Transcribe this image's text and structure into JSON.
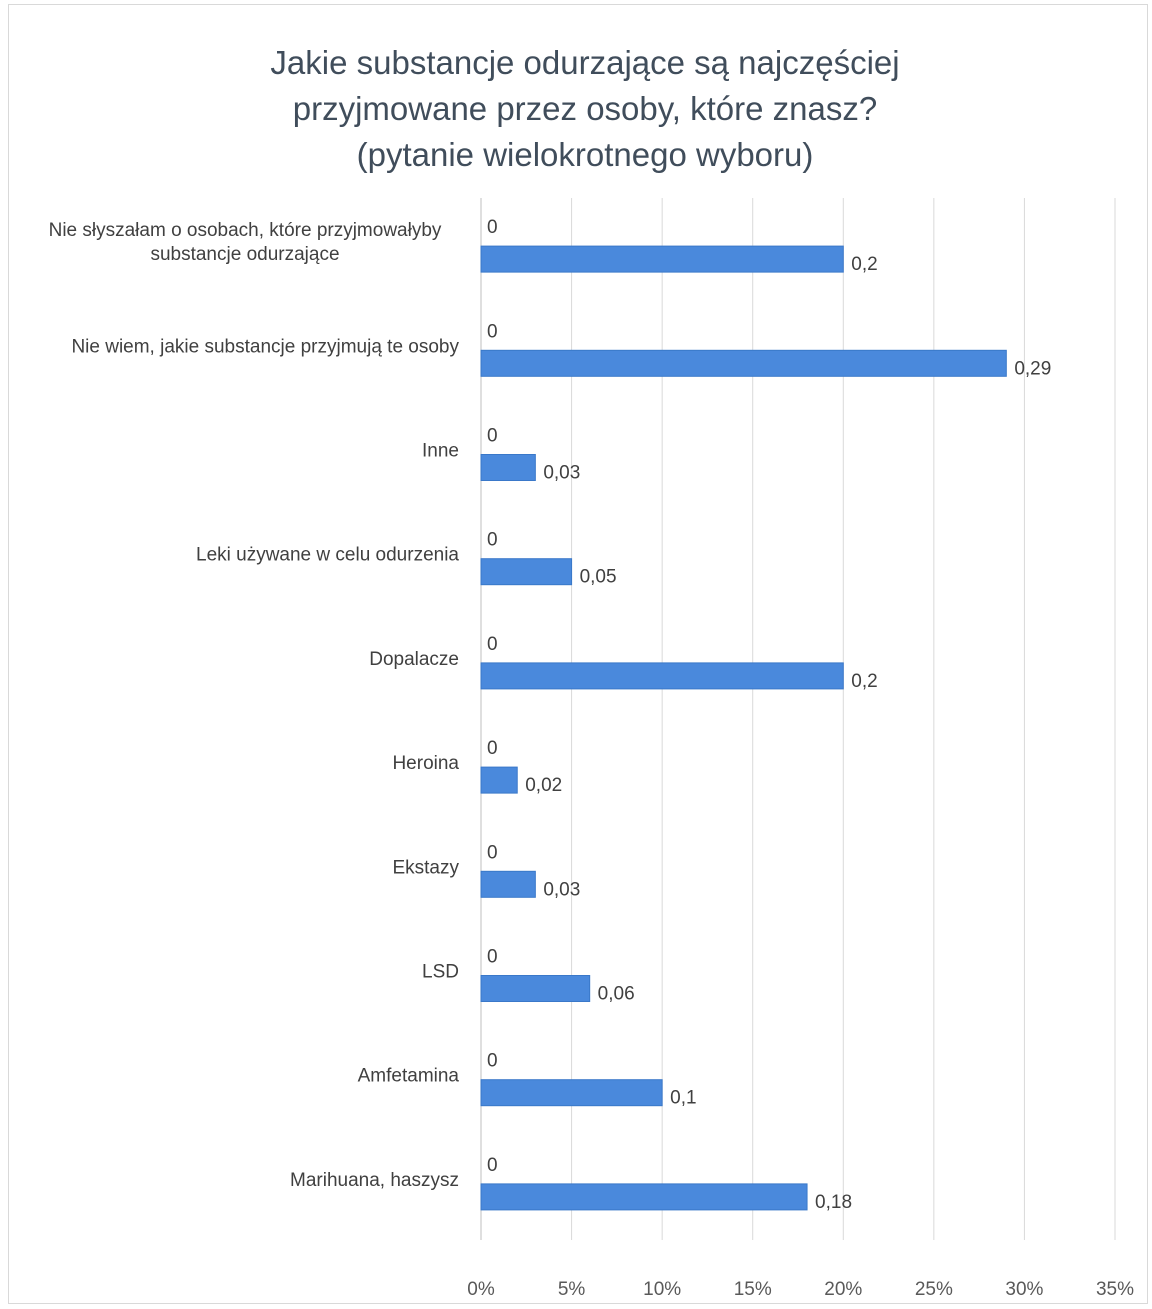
{
  "chart_data": {
    "type": "bar",
    "orientation": "horizontal",
    "title_lines": [
      "Jakie substancje odurzające są najczęściej",
      "przyjmowane przez osoby, które znasz?",
      "(pytanie wielokrotnego wyboru)"
    ],
    "categories": [
      [
        "Nie słyszałam o osobach, które przyjmowałyby",
        "substancje odurzające"
      ],
      [
        "Nie wiem, jakie substancje przyjmują te osoby"
      ],
      [
        "Inne"
      ],
      [
        "Leki używane w celu odurzenia"
      ],
      [
        "Dopalacze"
      ],
      [
        "Heroina"
      ],
      [
        "Ekstazy"
      ],
      [
        "LSD"
      ],
      [
        "Amfetamina"
      ],
      [
        "Marihuana, haszysz"
      ]
    ],
    "series": [
      {
        "values": [
          0,
          0,
          0,
          0,
          0,
          0,
          0,
          0,
          0,
          0
        ],
        "data_labels": [
          "0",
          "0",
          "0",
          "0",
          "0",
          "0",
          "0",
          "0",
          "0",
          "0"
        ]
      },
      {
        "values": [
          0.2,
          0.29,
          0.03,
          0.05,
          0.2,
          0.02,
          0.03,
          0.06,
          0.1,
          0.18
        ],
        "data_labels": [
          "0,2",
          "0,29",
          "0,03",
          "0,05",
          "0,2",
          "0,02",
          "0,03",
          "0,06",
          "0,1",
          "0,18"
        ],
        "color": "#4a89dc"
      }
    ],
    "xlim": [
      0,
      0.35
    ],
    "x_ticks": [
      0,
      0.05,
      0.1,
      0.15,
      0.2,
      0.25,
      0.3,
      0.35
    ],
    "x_tick_labels": [
      "0%",
      "5%",
      "10%",
      "15%",
      "20%",
      "25%",
      "30%",
      "35%"
    ],
    "grid": "vertical",
    "legend": "none"
  }
}
